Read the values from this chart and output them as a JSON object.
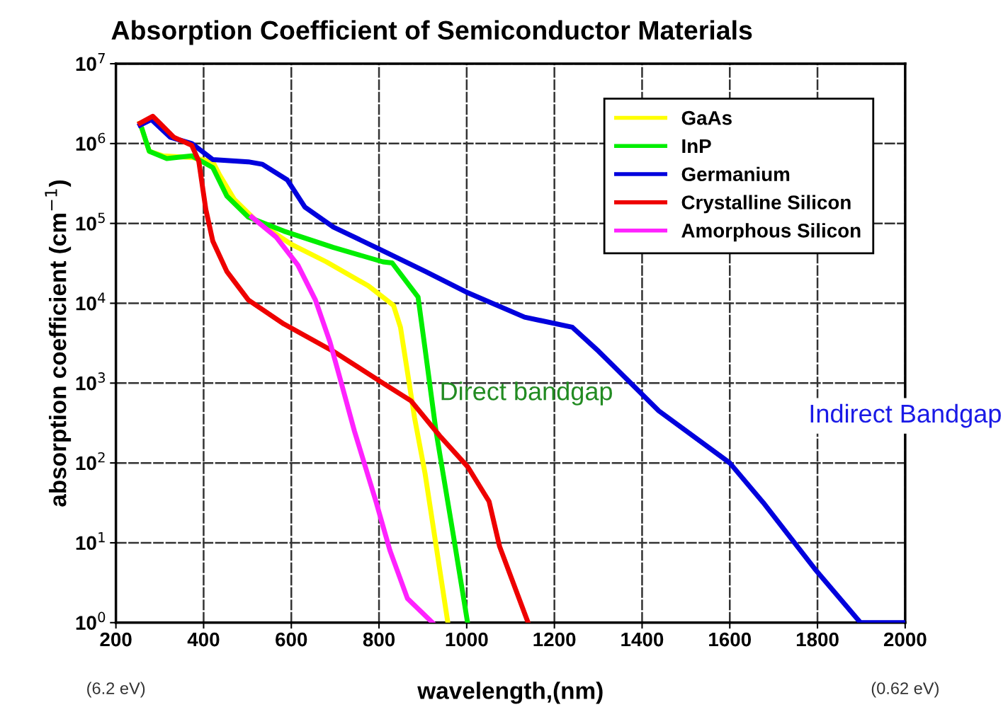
{
  "chart_data": {
    "type": "line",
    "title": "Absorption Coefficient of Semiconductor Materials",
    "xlabel": "wavelength,(nm)",
    "ylabel": "absorption coefficient (cm$^{−1}$)",
    "log": "y",
    "grid": true,
    "legend": "top right",
    "line_style": "solid",
    "marker": "none",
    "xlim": [
      200,
      2000
    ],
    "xticks": [
      200,
      400,
      600,
      800,
      1000,
      1200,
      1400,
      1600,
      1800,
      2000
    ],
    "ylim": [
      1,
      10000000
    ],
    "yticks": [
      {
        "value": 1,
        "label": "10$^{0}$"
      },
      {
        "value": 10,
        "label": "10$^{1}$"
      },
      {
        "value": 100,
        "label": "10$^{2}$"
      },
      {
        "value": 1000,
        "label": "10$^{3}$"
      },
      {
        "value": 10000,
        "label": "10$^{4}$"
      },
      {
        "value": 100000,
        "label": "10$^{5}$"
      },
      {
        "value": 1000000,
        "label": "10$^{6}$"
      },
      {
        "value": 10000000,
        "label": "10$^{7}$"
      }
    ],
    "annotations": [
      "Direct bandgap",
      "Indirect Bandgap",
      "(6.2 eV)",
      "(0.62 eV)"
    ],
    "series": [
      {
        "name": "GaAs",
        "color": "#ffff00",
        "x": [
          255,
          276,
          308,
          373,
          421,
          437,
          470,
          518,
          599,
          680,
          776,
          833,
          849,
          881,
          905,
          957
        ],
        "values": [
          1800000,
          800000,
          700000,
          670000,
          590000,
          400000,
          200000,
          110000,
          55000,
          33000,
          16500,
          9400,
          5000,
          370,
          74,
          1
        ]
      },
      {
        "name": "InP",
        "color": "#00ee00",
        "x": [
          260,
          276,
          316,
          373,
          421,
          453,
          502,
          583,
          696,
          809,
          830,
          889,
          905,
          930,
          970,
          1002
        ],
        "values": [
          1500000,
          800000,
          650000,
          700000,
          500000,
          220000,
          120000,
          80000,
          50000,
          33000,
          32000,
          12000,
          2700,
          250,
          12,
          1
        ]
      },
      {
        "name": "Germanium",
        "color": "#0000dd",
        "x": [
          255,
          281,
          324,
          373,
          421,
          502,
          534,
          591,
          631,
          696,
          793,
          906,
          1003,
          1132,
          1241,
          1301,
          1438,
          1600,
          1676,
          1794,
          1898,
          2000
        ],
        "values": [
          1700000,
          2000000,
          1200000,
          1000000,
          630000,
          590000,
          550000,
          350000,
          160000,
          90000,
          50000,
          25000,
          13500,
          6700,
          5000,
          2500,
          450,
          100,
          32,
          4.7,
          1,
          1
        ]
      },
      {
        "name": "Crystalline Silicon",
        "color": "#ee0000",
        "x": [
          255,
          284,
          300,
          332,
          373,
          389,
          405,
          421,
          453,
          502,
          583,
          696,
          809,
          873,
          938,
          1002,
          1051,
          1075,
          1140
        ],
        "values": [
          1800000,
          2200000,
          1800000,
          1200000,
          950000,
          600000,
          150000,
          60000,
          25000,
          11000,
          5500,
          2500,
          1000,
          600,
          220,
          90,
          33,
          9,
          1
        ]
      },
      {
        "name": "Amorphous Silicon",
        "color": "#ff22ff",
        "x": [
          510,
          566,
          615,
          655,
          688,
          712,
          744,
          793,
          825,
          865,
          922
        ],
        "values": [
          120000,
          67000,
          30000,
          11000,
          3300,
          1100,
          250,
          33,
          8,
          2,
          1
        ]
      }
    ]
  }
}
